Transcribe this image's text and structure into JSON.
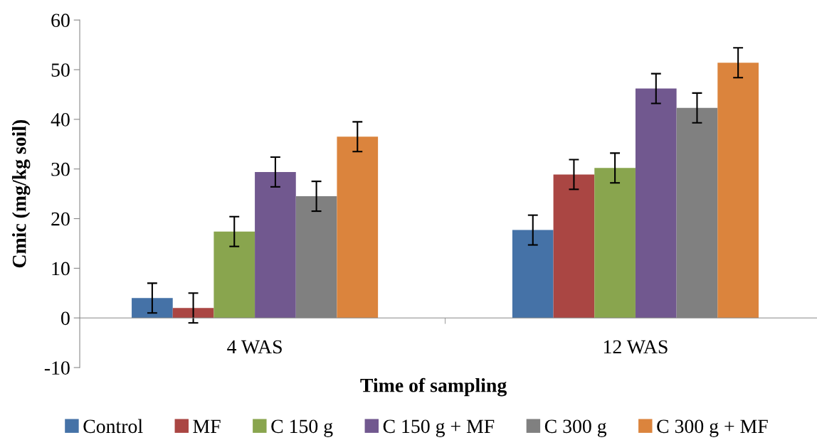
{
  "chart_data": {
    "type": "bar",
    "xlabel": "Time of sampling",
    "ylabel": "Cmic (mg/kg soil)",
    "categories": [
      "4 WAS",
      "12 WAS"
    ],
    "series": [
      {
        "name": "Control",
        "color": "#4572a7",
        "values": [
          4,
          17.7
        ],
        "errors": [
          3,
          3
        ]
      },
      {
        "name": "MF",
        "color": "#aa4643",
        "values": [
          2,
          28.9
        ],
        "errors": [
          3,
          3
        ]
      },
      {
        "name": "C 150 g",
        "color": "#89a54e",
        "values": [
          17.4,
          30.2
        ],
        "errors": [
          3,
          3
        ]
      },
      {
        "name": "C 150 g + MF",
        "color": "#71588f",
        "values": [
          29.4,
          46.2
        ],
        "errors": [
          3,
          3
        ]
      },
      {
        "name": "C 300 g",
        "color": "#808080",
        "values": [
          24.5,
          42.3
        ],
        "errors": [
          3,
          3
        ]
      },
      {
        "name": "C 300 g + MF",
        "color": "#db843d",
        "values": [
          36.5,
          51.4
        ],
        "errors": [
          3,
          3
        ]
      }
    ],
    "ylim": [
      -10,
      60
    ],
    "yticks": [
      -10,
      0,
      10,
      20,
      30,
      40,
      50,
      60
    ],
    "grid": false,
    "legend": "bottom"
  }
}
